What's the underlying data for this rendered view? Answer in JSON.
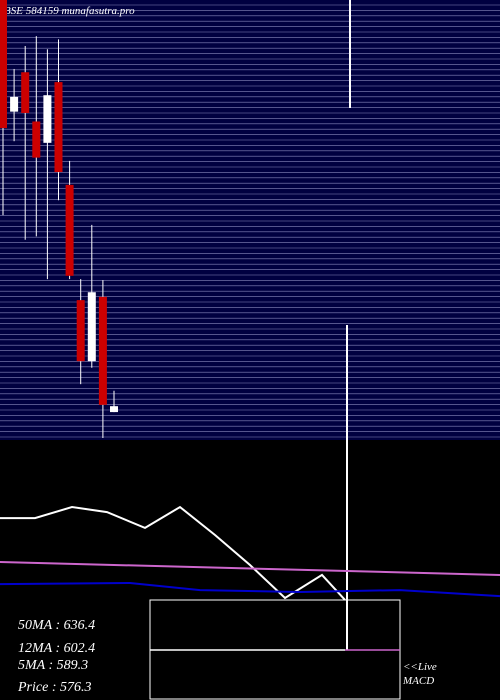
{
  "chart_data": {
    "type": "candlestick",
    "title": "BSE 584159 munafasutra.pro",
    "ylim": [
      566,
      700
    ],
    "up_color": "#ffffff",
    "down_color": "#cc0000",
    "candles": [
      {
        "open": 700,
        "high": 700,
        "low": 634.5,
        "close": 661
      },
      {
        "open": 666,
        "high": 679,
        "low": 657,
        "close": 670.5
      },
      {
        "open": 678,
        "high": 686,
        "low": 627,
        "close": 665.6
      },
      {
        "open": 663,
        "high": 689,
        "low": 628,
        "close": 652
      },
      {
        "open": 656.5,
        "high": 685,
        "low": 615,
        "close": 671
      },
      {
        "open": 675,
        "high": 688,
        "low": 639,
        "close": 647.6
      },
      {
        "open": 643.7,
        "high": 651,
        "low": 615,
        "close": 616
      },
      {
        "open": 608.6,
        "high": 615,
        "low": 583,
        "close": 590
      },
      {
        "open": 590,
        "high": 631.5,
        "low": 588,
        "close": 611
      },
      {
        "open": 609.6,
        "high": 614.7,
        "low": 566.6,
        "close": 576.7
      },
      {
        "open": 574.5,
        "high": 581,
        "low": 574.5,
        "close": 576.3
      }
    ],
    "indicator": {
      "xlim": [
        0,
        500
      ],
      "ylim": [
        0,
        100
      ],
      "series": [
        {
          "color": "#ffffff",
          "x": [
            0,
            35,
            72,
            107,
            145,
            180,
            215,
            250,
            285,
            322,
            345
          ],
          "values": [
            75.8,
            75.8,
            80.4,
            78.3,
            71.7,
            80.4,
            68.75,
            56.25,
            42.5,
            52.1,
            41.7
          ]
        },
        {
          "color": "#cc66cc",
          "x": [
            0,
            500
          ],
          "values": [
            57.5,
            52.1
          ]
        },
        {
          "color": "#0000cc",
          "x": [
            0,
            130,
            200,
            300,
            400,
            500
          ],
          "values": [
            48.3,
            48.75,
            45.8,
            45,
            45.8,
            43.3
          ]
        }
      ]
    },
    "stats": [
      "50MA : 636.4",
      "12MA : 602.4",
      "5MA : 589.3",
      "Price   : 576.3"
    ],
    "live_link": "<<Live",
    "macd_label": "MACD"
  }
}
